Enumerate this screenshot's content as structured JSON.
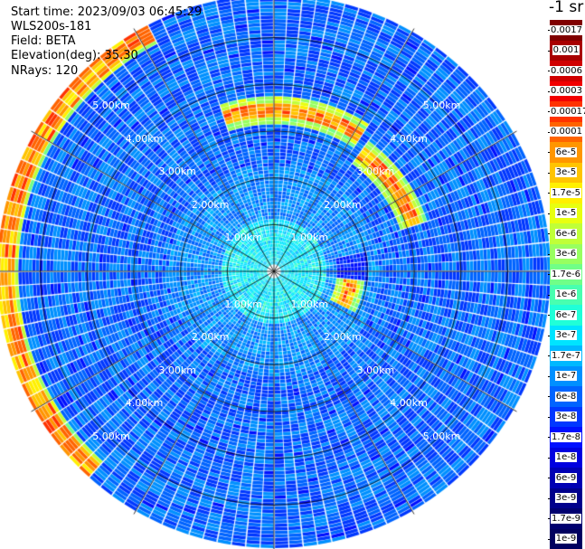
{
  "header": {
    "start_time": "Start time: 2023/09/03 06:45:29",
    "instrument": "WLS200s-181",
    "field": "Field: BETA",
    "elevation": "Elevation(deg): 35.30",
    "nrays": "NRays: 120"
  },
  "colorbar": {
    "unit_label": "-1 sr",
    "labels": [
      "0.0017",
      "0.001",
      "0.0006",
      "0.0003",
      "0.00017",
      "0.0001",
      "6e-5",
      "3e-5",
      "1.7e-5",
      "1e-5",
      "6e-6",
      "3e-6",
      "1.7e-6",
      "1e-6",
      "6e-7",
      "3e-7",
      "1.7e-7",
      "1e-7",
      "6e-8",
      "3e-8",
      "1.7e-8",
      "1e-8",
      "6e-9",
      "3e-9",
      "1.7e-9",
      "1e-9"
    ],
    "colors": [
      "#800000",
      "#a80000",
      "#d00000",
      "#f20000",
      "#ff3300",
      "#ff6400",
      "#ff9600",
      "#ffc400",
      "#fff000",
      "#e8ff10",
      "#c0ff38",
      "#98ff60",
      "#70ff88",
      "#48ffb0",
      "#20ffd8",
      "#00e4ff",
      "#00b8ff",
      "#0090ff",
      "#0064ff",
      "#0038ff",
      "#0010ff",
      "#0000e0",
      "#0000b4",
      "#00008c",
      "#000070",
      "#000060"
    ]
  },
  "chart_data": {
    "type": "heatmap",
    "subtype": "polar-ppi",
    "field": "BETA",
    "elevation_deg": 35.3,
    "nrays": 120,
    "range_rings_km": [
      1,
      2,
      3,
      4,
      5
    ],
    "range_labels": [
      "1.00km",
      "2.00km",
      "3.00km",
      "4.00km",
      "5.00km"
    ],
    "ray_line_spacing_deg": 30,
    "scale": "log",
    "scale_min": "1e-9",
    "scale_max": "0.0017",
    "notable_features": [
      {
        "description": "high backscatter arc",
        "range_km": 3.4,
        "azimuth_deg": [
          340,
          30
        ],
        "level": "1e-4"
      },
      {
        "description": "high backscatter arc",
        "range_km": 3.1,
        "azimuth_deg": [
          35,
          70
        ],
        "level": "6e-5"
      },
      {
        "description": "near-range high backscatter",
        "range_km": 1.6,
        "azimuth_deg": [
          85,
          115
        ],
        "level": "1e-4"
      },
      {
        "description": "outer ring high backscatter",
        "range_km": 5.7,
        "azimuth_deg": [
          220,
          330
        ],
        "level": "3e-5"
      }
    ]
  }
}
